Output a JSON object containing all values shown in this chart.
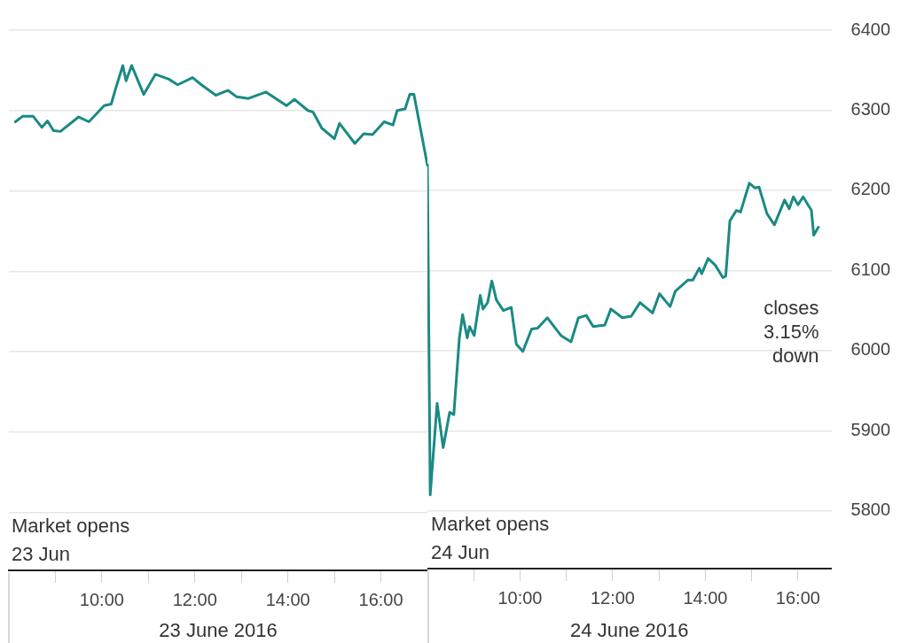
{
  "chart_data": [
    {
      "type": "line",
      "xlabel": "23 June 2016",
      "tick_labels": "x",
      "x": [
        8.14,
        8.3,
        8.52,
        8.71,
        8.83,
        8.96,
        9.11,
        9.5,
        9.72,
        10.05,
        10.2,
        10.3,
        10.45,
        10.52,
        10.64,
        10.9,
        11.15,
        11.44,
        11.63,
        11.95,
        12.14,
        12.45,
        12.71,
        12.9,
        13.15,
        13.53,
        13.97,
        14.14,
        14.43,
        14.54,
        14.73,
        15.0,
        15.11,
        15.44,
        15.63,
        15.82,
        16.07,
        16.26,
        16.35,
        16.52,
        16.62,
        16.71,
        17.0
      ],
      "series": [
        {
          "color": "#1a8a84",
          "values": [
            6286,
            6293,
            6293,
            6279,
            6287,
            6275,
            6274,
            6292,
            6286,
            6306,
            6308,
            6328,
            6356,
            6337,
            6356,
            6320,
            6345,
            6339,
            6332,
            6341,
            6332,
            6319,
            6325,
            6317,
            6315,
            6323,
            6306,
            6314,
            6300,
            6298,
            6278,
            6265,
            6284,
            6259,
            6271,
            6270,
            6286,
            6282,
            6300,
            6302,
            6320,
            6320,
            6232
          ]
        }
      ],
      "xlim": [
        8,
        17
      ],
      "xticks": [
        {
          "value": 9,
          "label": null
        },
        {
          "value": 10,
          "label": "10:00"
        },
        {
          "value": 11,
          "label": null
        },
        {
          "value": 12,
          "label": "12:00"
        },
        {
          "value": 13,
          "label": null
        },
        {
          "value": 14,
          "label": "14:00"
        },
        {
          "value": 15,
          "label": null
        },
        {
          "value": 16,
          "label": "16:00"
        }
      ],
      "ylim": [
        5728,
        6400
      ],
      "yticks": [
        5800,
        5900,
        6000,
        6100,
        6200,
        6300,
        6400
      ],
      "grid": "y",
      "marker": "none",
      "line_style": "solid",
      "ref_lines": [
        {
          "axis": "x",
          "value": 8,
          "label": "Market opens\n23 Jun",
          "color": "#cccccc"
        }
      ]
    },
    {
      "type": "line",
      "xlabel": "24 June 2016",
      "x": [
        8.0,
        8.06,
        8.21,
        8.34,
        8.48,
        8.57,
        8.69,
        8.76,
        8.86,
        8.91,
        9.01,
        9.14,
        9.2,
        9.3,
        9.39,
        9.49,
        9.64,
        9.81,
        9.92,
        10.06,
        10.25,
        10.38,
        10.59,
        10.88,
        11.1,
        11.26,
        11.43,
        11.58,
        11.83,
        11.96,
        12.21,
        12.4,
        12.59,
        12.86,
        13.01,
        13.24,
        13.35,
        13.62,
        13.73,
        13.87,
        13.92,
        14.06,
        14.21,
        14.38,
        14.44,
        14.53,
        14.67,
        14.76,
        14.95,
        15.07,
        15.16,
        15.33,
        15.49,
        15.71,
        15.81,
        15.9,
        16.0,
        16.11,
        16.29,
        16.34,
        16.44
      ],
      "series": [
        {
          "color": "#1a8a84",
          "values": [
            6232,
            5820,
            5934,
            5879,
            5923,
            5920,
            6016,
            6045,
            6016,
            6030,
            6019,
            6069,
            6052,
            6060,
            6087,
            6063,
            6050,
            6054,
            6008,
            5999,
            6027,
            6028,
            6041,
            6019,
            6011,
            6041,
            6044,
            6030,
            6032,
            6052,
            6041,
            6043,
            6060,
            6047,
            6071,
            6055,
            6074,
            6088,
            6088,
            6103,
            6096,
            6115,
            6107,
            6091,
            6093,
            6162,
            6175,
            6173,
            6209,
            6203,
            6204,
            6171,
            6157,
            6188,
            6177,
            6192,
            6182,
            6192,
            6175,
            6144,
            6154
          ]
        }
      ],
      "xlim": [
        8,
        16.72
      ],
      "xticks": [
        {
          "value": 9,
          "label": null
        },
        {
          "value": 10,
          "label": "10:00"
        },
        {
          "value": 11,
          "label": null
        },
        {
          "value": 12,
          "label": "12:00"
        },
        {
          "value": 13,
          "label": null
        },
        {
          "value": 14,
          "label": "14:00"
        },
        {
          "value": 15,
          "label": null
        },
        {
          "value": 16,
          "label": "16:00"
        }
      ],
      "ylim": [
        5728,
        6400
      ],
      "yticks": [
        5800,
        5900,
        6000,
        6100,
        6200,
        6300,
        6400
      ],
      "grid": "y",
      "marker": "none",
      "line_style": "solid",
      "ref_lines": [
        {
          "axis": "x",
          "value": 8,
          "label": "Market opens\n24 Jun",
          "color": "#cccccc"
        }
      ],
      "annotations": [
        "closes\n3.15%\ndown"
      ]
    }
  ]
}
